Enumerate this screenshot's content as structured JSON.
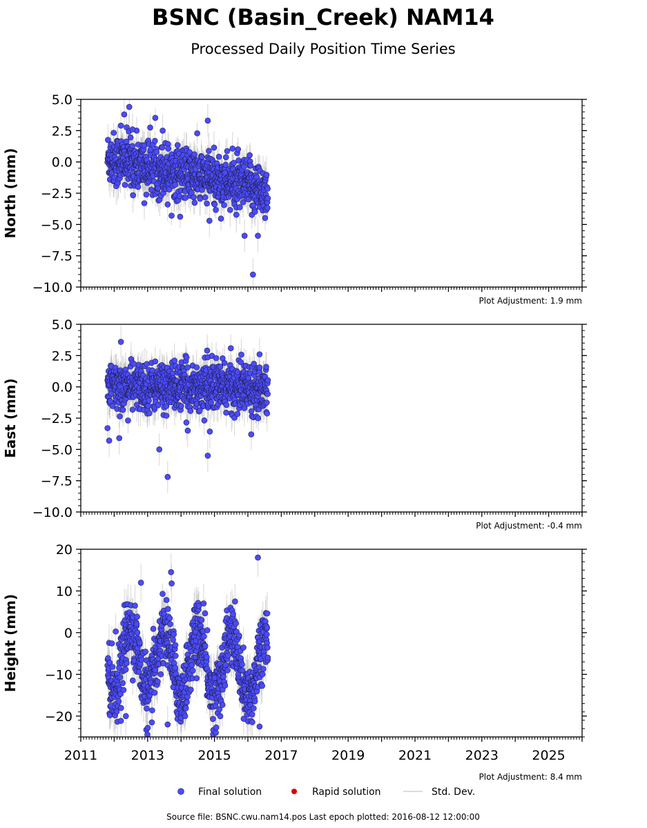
{
  "figure": {
    "title": "BSNC (Basin_Creek) NAM14",
    "subtitle": "Processed Daily Position Time Series",
    "footer": "Source file: BSNC.cwu.nam14.pos  Last epoch plotted: 2016-08-12 12:00:00"
  },
  "legend": {
    "final": "Final solution",
    "rapid": "Rapid solution",
    "std": "Std. Dev."
  },
  "colors": {
    "final": "#4b4bff",
    "final_edge": "#1e1e46",
    "rapid": "#dd0000",
    "std": "#b4b4b4"
  },
  "chart_data": [
    {
      "type": "scatter",
      "name": "north",
      "ylabel": "North (mm)",
      "ylim": [
        -10,
        5
      ],
      "yticks": [
        5,
        2.5,
        0,
        -2.5,
        -5,
        -7.5,
        -10
      ],
      "ytick_labels": [
        "5.0",
        "2.5",
        "0.0",
        "−2.5",
        "−5.0",
        "−7.5",
        "−10.0"
      ],
      "xlim": [
        2011,
        2026
      ],
      "adjustment": "Plot Adjustment: 1.9 mm",
      "trend": [
        [
          2011.8,
          0.3
        ],
        [
          2016.6,
          -2.3
        ]
      ],
      "noise": 1.05,
      "std_dev": 1.0,
      "outliers": [
        [
          2012.3,
          3.8
        ],
        [
          2012.45,
          4.4
        ],
        [
          2012.55,
          2.6
        ],
        [
          2012.2,
          2.9
        ],
        [
          2013.45,
          2.5
        ],
        [
          2014.8,
          3.3
        ],
        [
          2016.15,
          -9.0
        ],
        [
          2016.3,
          -5.9
        ],
        [
          2015.9,
          -5.9
        ],
        [
          2014.85,
          -4.7
        ],
        [
          2012.9,
          -3.3
        ],
        [
          2013.6,
          -3.4
        ]
      ]
    },
    {
      "type": "scatter",
      "name": "east",
      "ylabel": "East (mm)",
      "ylim": [
        -10,
        5
      ],
      "yticks": [
        5,
        2.5,
        0,
        -2.5,
        -5,
        -7.5,
        -10
      ],
      "ytick_labels": [
        "5.0",
        "2.5",
        "0.0",
        "−2.5",
        "−5.0",
        "−7.5",
        "−10.0"
      ],
      "xlim": [
        2011,
        2026
      ],
      "adjustment": "Plot Adjustment: -0.4 mm",
      "trend": [
        [
          2011.8,
          0.0
        ],
        [
          2016.6,
          0.0
        ]
      ],
      "noise": 0.95,
      "std_dev": 1.0,
      "outliers": [
        [
          2011.8,
          -3.3
        ],
        [
          2011.85,
          -4.3
        ],
        [
          2012.15,
          -4.1
        ],
        [
          2012.2,
          3.6
        ],
        [
          2013.35,
          -5.0
        ],
        [
          2013.6,
          -7.2
        ],
        [
          2014.8,
          -5.5
        ],
        [
          2014.78,
          2.9
        ],
        [
          2015.05,
          2.3
        ],
        [
          2016.1,
          -3.8
        ],
        [
          2016.35,
          2.6
        ],
        [
          2014.2,
          -3.5
        ]
      ]
    },
    {
      "type": "scatter",
      "name": "height",
      "ylabel": "Height (mm)",
      "ylim": [
        -25,
        20
      ],
      "yticks": [
        20,
        10,
        0,
        -10,
        -20
      ],
      "ytick_labels": [
        "20",
        "10",
        "0",
        "−10",
        "−20"
      ],
      "xlim": [
        2011,
        2026
      ],
      "xticks": [
        2011,
        2013,
        2015,
        2017,
        2019,
        2021,
        2023,
        2025
      ],
      "xtick_labels": [
        "2011",
        "2013",
        "2015",
        "2017",
        "2019",
        "2021",
        "2023",
        "2025"
      ],
      "adjustment": "Plot Adjustment: 8.4 mm",
      "trend": [
        [
          2011.8,
          -6.0
        ],
        [
          2016.6,
          -9.0
        ]
      ],
      "seasonal_amplitude": 7.5,
      "noise": 4.0,
      "std_dev": 3.5,
      "outliers": [
        [
          2016.3,
          18.0
        ],
        [
          2013.7,
          14.5
        ],
        [
          2012.8,
          12.0
        ],
        [
          2013.72,
          11.8
        ],
        [
          2013.6,
          -22.0
        ],
        [
          2016.35,
          -22.5
        ],
        [
          2012.35,
          -20.0
        ]
      ]
    }
  ]
}
